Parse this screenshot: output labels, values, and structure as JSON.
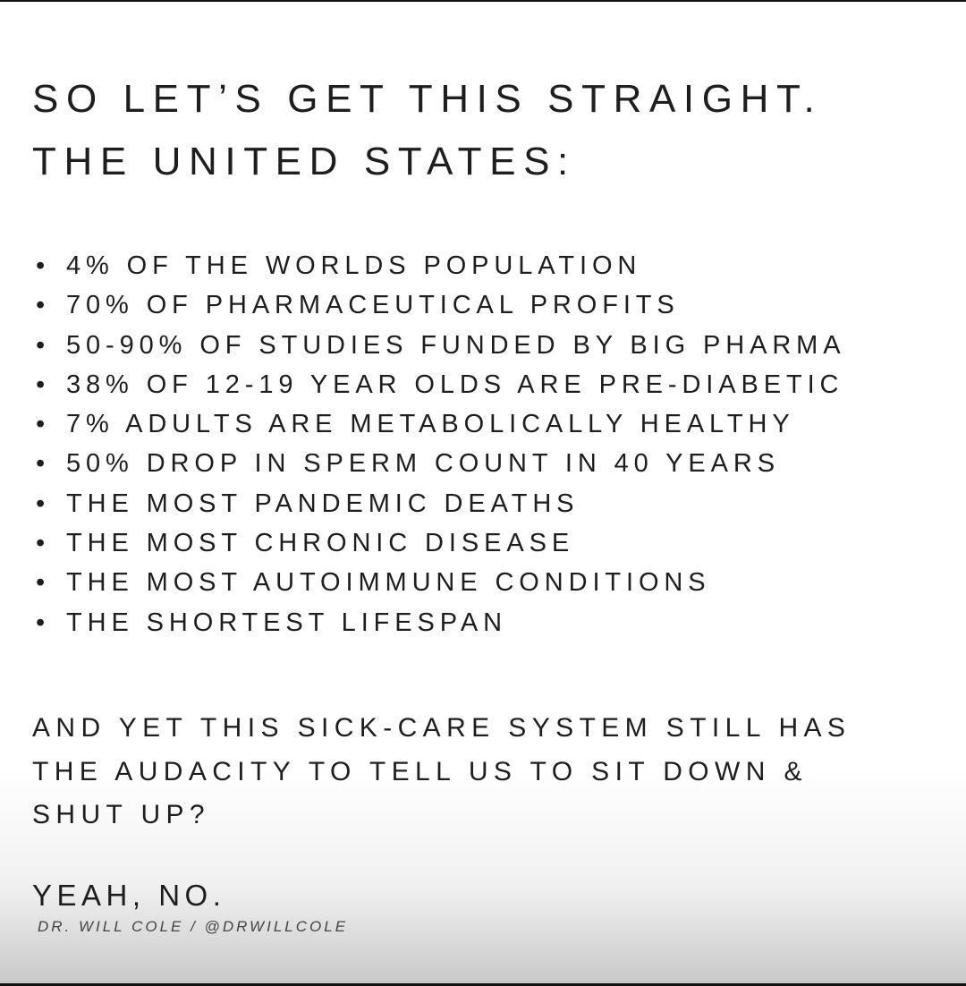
{
  "title_lines": [
    "SO LET’S GET THIS STRAIGHT.",
    "THE UNITED STATES:"
  ],
  "bullet_glyph": "•",
  "items": [
    "4% OF THE WORLDS POPULATION",
    "70% OF PHARMACEUTICAL PROFITS",
    "50-90% OF STUDIES FUNDED BY BIG PHARMA",
    "38% OF 12-19 YEAR OLDS ARE PRE-DIABETIC",
    "7% ADULTS ARE METABOLICALLY HEALTHY",
    "50% DROP IN SPERM COUNT IN 40 YEARS",
    "THE MOST PANDEMIC DEATHS",
    "THE MOST CHRONIC DISEASE",
    "THE MOST AUTOIMMUNE CONDITIONS",
    "THE SHORTEST LIFESPAN"
  ],
  "paragraph_lines": [
    "AND YET THIS SICK-CARE SYSTEM STILL HAS",
    "THE AUDACITY TO TELL US TO SIT DOWN &",
    "SHUT UP?"
  ],
  "closing": "YEAH, NO.",
  "attribution": "DR. WILL COLE / @DRWILLCOLE"
}
